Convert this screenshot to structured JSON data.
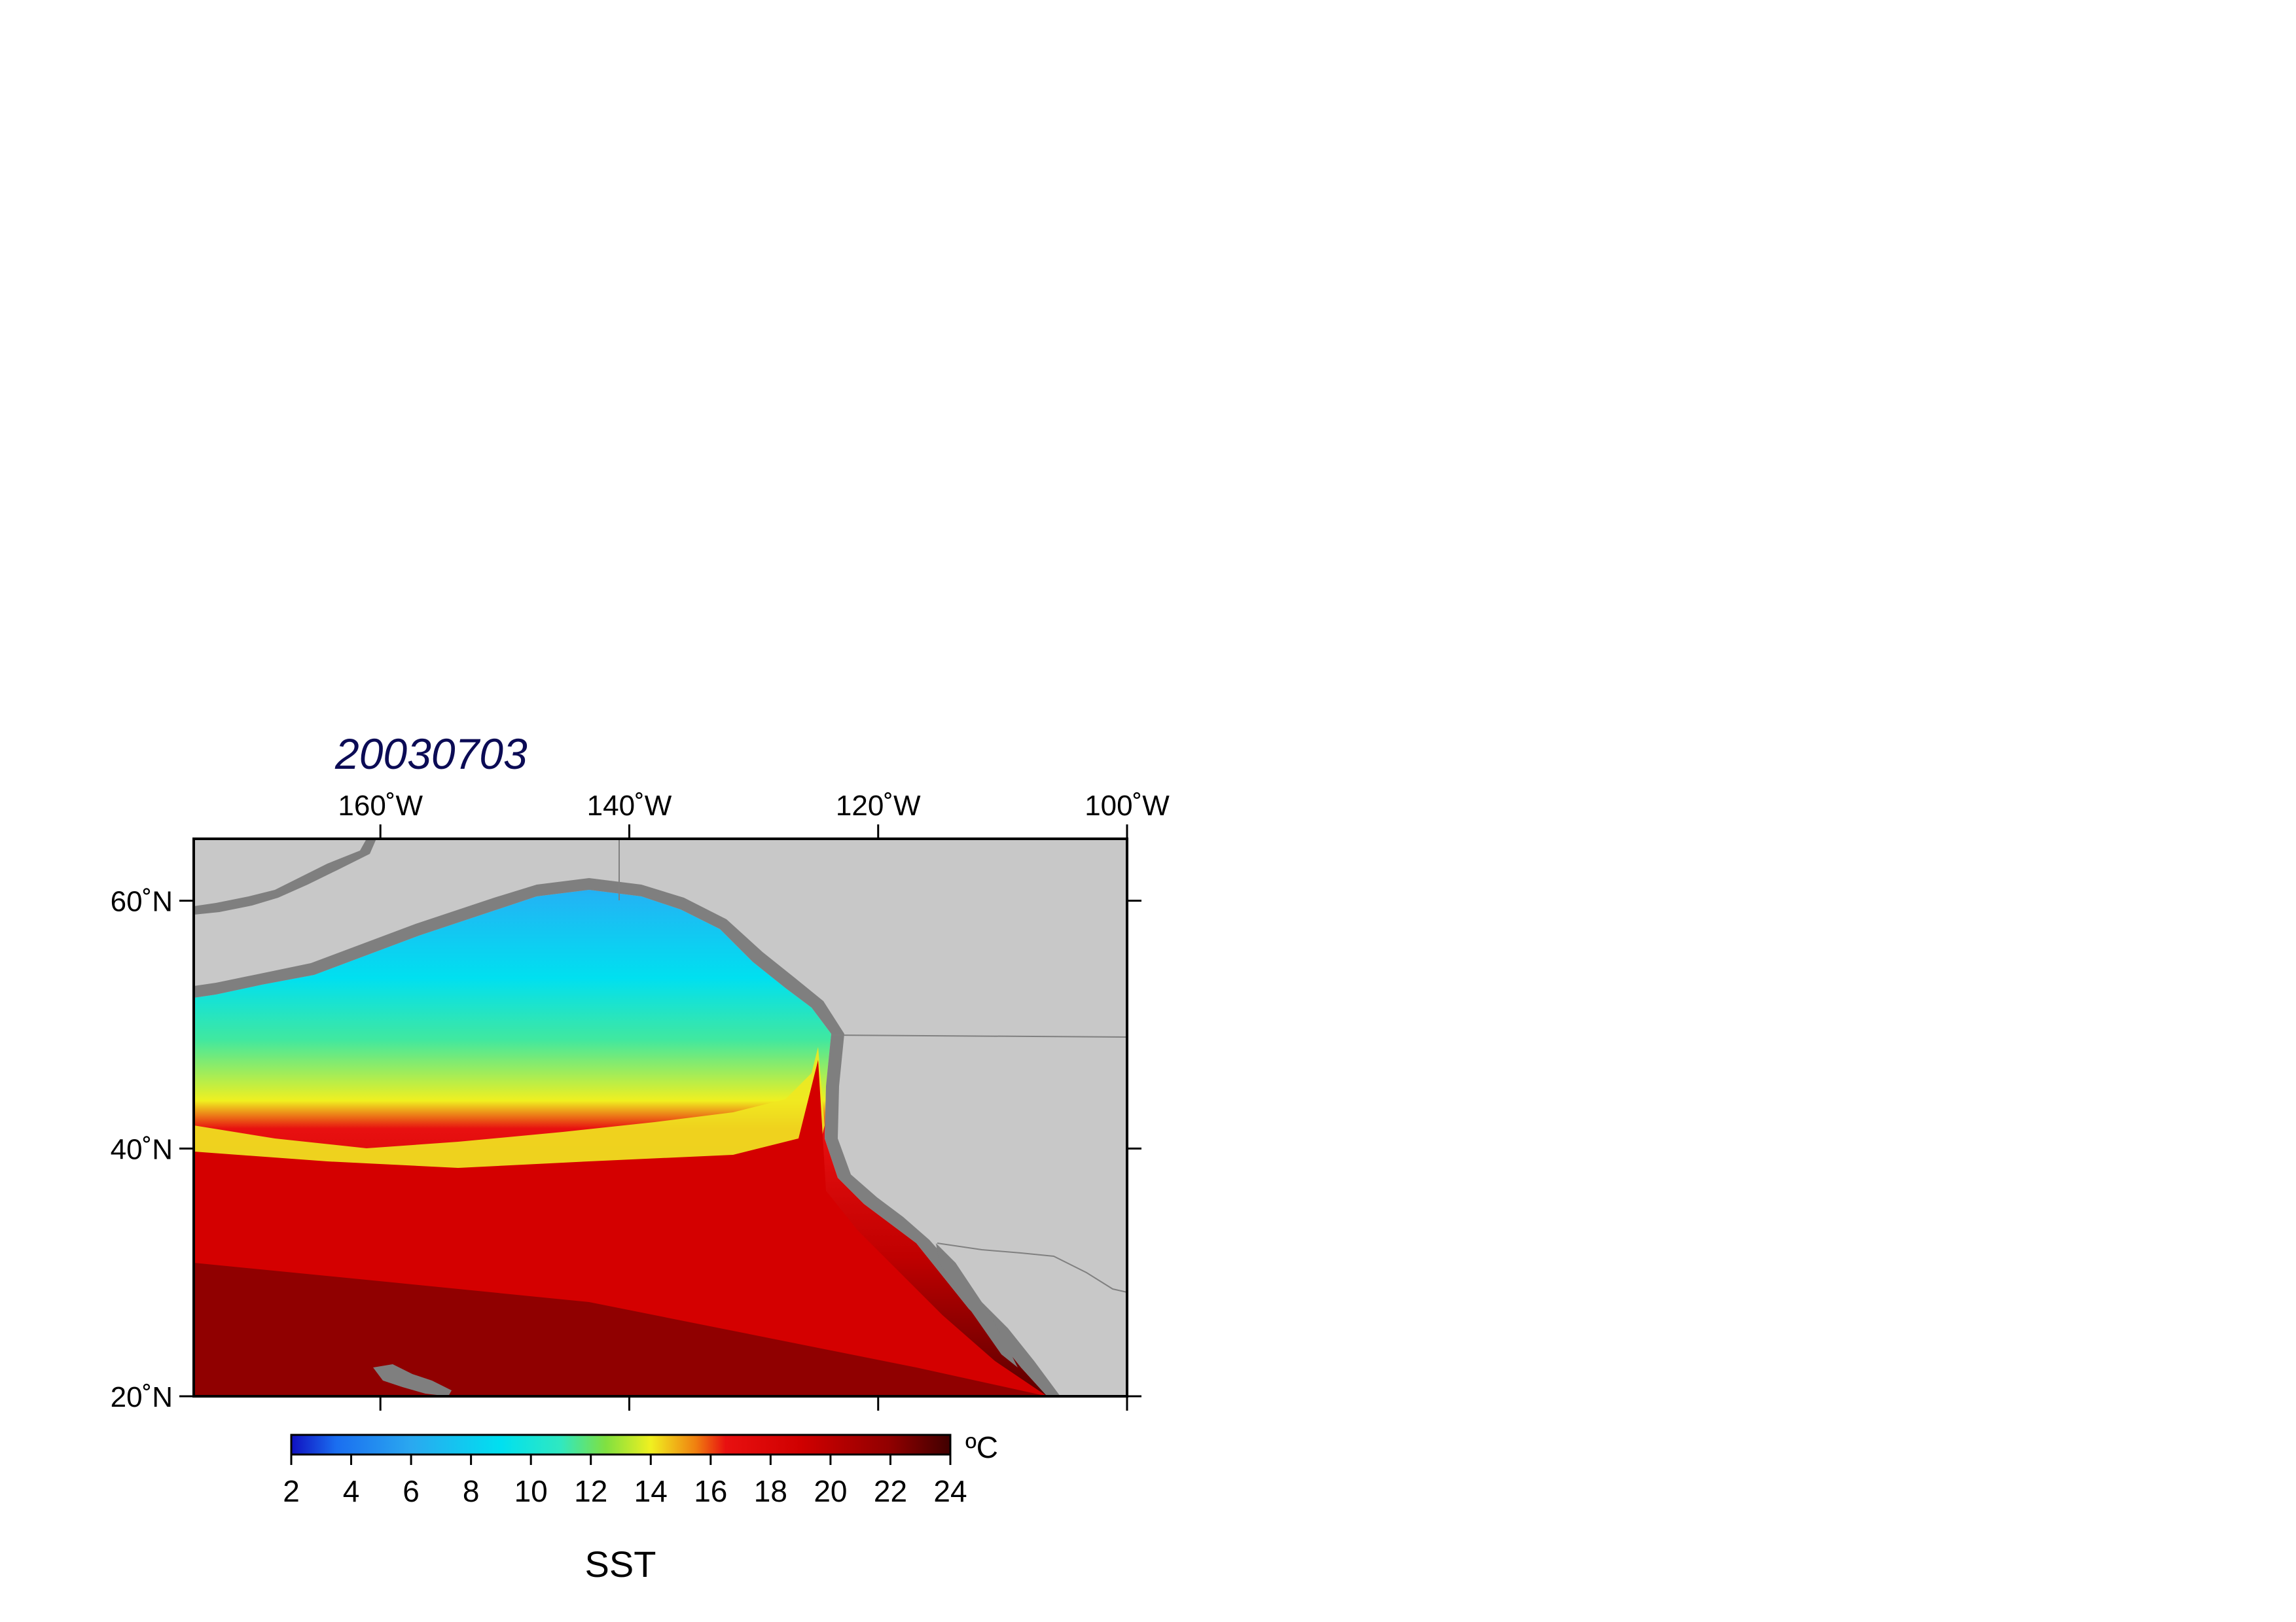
{
  "title": "20030703",
  "colors": {
    "title": "#0b0b55",
    "land": "#c8c8c8",
    "coast_shelf": "#7f7f7f",
    "frame": "#000000"
  },
  "map": {
    "lon_range": [
      -175,
      -100
    ],
    "lat_range": [
      20,
      65
    ],
    "lon_ticks": [
      {
        "value": -160,
        "label": "160˚W"
      },
      {
        "value": -140,
        "label": "140˚W"
      },
      {
        "value": -120,
        "label": "120˚W"
      },
      {
        "value": -100,
        "label": "100˚W"
      }
    ],
    "lat_ticks": [
      {
        "value": 60,
        "label": "60˚N"
      },
      {
        "value": 40,
        "label": "40˚N"
      },
      {
        "value": 20,
        "label": "20˚N"
      }
    ]
  },
  "colorbar": {
    "variable_label": "SST",
    "unit": "ºC",
    "range": [
      2,
      24
    ],
    "ticks": [
      "2",
      "4",
      "6",
      "8",
      "10",
      "12",
      "14",
      "16",
      "18",
      "20",
      "22",
      "24"
    ],
    "stops": [
      {
        "value": 2,
        "color": "#1010c0"
      },
      {
        "value": 3.5,
        "color": "#1a6ef0"
      },
      {
        "value": 6,
        "color": "#2aa8f0"
      },
      {
        "value": 9,
        "color": "#00e0f0"
      },
      {
        "value": 11,
        "color": "#30e8c0"
      },
      {
        "value": 12.5,
        "color": "#80e040"
      },
      {
        "value": 14,
        "color": "#f0f020"
      },
      {
        "value": 15.5,
        "color": "#f08010"
      },
      {
        "value": 16.5,
        "color": "#e81010"
      },
      {
        "value": 19,
        "color": "#d00000"
      },
      {
        "value": 22,
        "color": "#900000"
      },
      {
        "value": 24,
        "color": "#400000"
      }
    ]
  }
}
